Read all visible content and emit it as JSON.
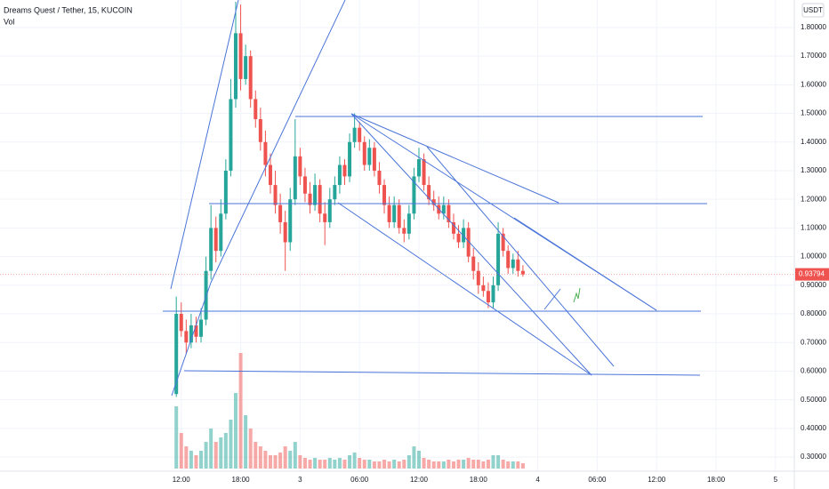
{
  "chart_data": {
    "type": "candlestick",
    "title": "Dreams Quest / Tether, 15, KUCOIN",
    "volume_label": "Vol",
    "currency": "USDT",
    "x": [
      11.5,
      12,
      12.5,
      13,
      13.5,
      14,
      14.5,
      15,
      15.5,
      16,
      16.5,
      17,
      17.5,
      18,
      18.5,
      19,
      19.5,
      20,
      20.5,
      21,
      21.5,
      22,
      22.5,
      23,
      23.5,
      24,
      24.5,
      25,
      25.5,
      26,
      26.5,
      27,
      27.5,
      28,
      28.5,
      29,
      29.5,
      30,
      30.5,
      31,
      31.5,
      32,
      32.5,
      33,
      33.5,
      34,
      34.5,
      35,
      35.5,
      36,
      36.5,
      37,
      37.5,
      38,
      38.5,
      39,
      39.5,
      40,
      40.5,
      41,
      41.5,
      42,
      42.5,
      43,
      43.5,
      44,
      44.5,
      45,
      45.5,
      46,
      46.5
    ],
    "open": [
      0.52,
      0.8,
      0.74,
      0.7,
      0.76,
      0.72,
      0.78,
      0.95,
      1.1,
      1.02,
      1.15,
      1.3,
      1.55,
      1.78,
      1.62,
      1.7,
      1.55,
      1.48,
      1.4,
      1.32,
      1.25,
      1.18,
      1.12,
      1.05,
      1.2,
      1.35,
      1.28,
      1.22,
      1.18,
      1.25,
      1.15,
      1.12,
      1.2,
      1.25,
      1.32,
      1.28,
      1.4,
      1.45,
      1.4,
      1.32,
      1.38,
      1.3,
      1.25,
      1.18,
      1.12,
      1.18,
      1.1,
      1.08,
      1.15,
      1.28,
      1.34,
      1.25,
      1.2,
      1.18,
      1.15,
      1.18,
      1.12,
      1.08,
      1.05,
      1.1,
      1.0,
      0.95,
      0.9,
      0.88,
      0.84,
      0.9,
      1.08,
      1.02,
      0.96,
      0.99,
      0.95
    ],
    "high": [
      0.86,
      0.84,
      0.78,
      0.8,
      0.79,
      0.82,
      1.0,
      1.18,
      1.14,
      1.2,
      1.34,
      1.62,
      1.89,
      1.88,
      1.74,
      1.72,
      1.58,
      1.52,
      1.44,
      1.36,
      1.3,
      1.22,
      1.16,
      1.24,
      1.48,
      1.38,
      1.31,
      1.26,
      1.29,
      1.27,
      1.19,
      1.24,
      1.28,
      1.35,
      1.34,
      1.43,
      1.5,
      1.47,
      1.42,
      1.41,
      1.4,
      1.33,
      1.27,
      1.21,
      1.21,
      1.2,
      1.13,
      1.18,
      1.31,
      1.38,
      1.36,
      1.28,
      1.23,
      1.21,
      1.21,
      1.2,
      1.15,
      1.11,
      1.13,
      1.12,
      1.03,
      0.98,
      0.93,
      0.91,
      0.93,
      1.12,
      1.1,
      1.04,
      1.01,
      1.02,
      0.97
    ],
    "low": [
      0.51,
      0.72,
      0.66,
      0.68,
      0.7,
      0.7,
      0.76,
      0.92,
      0.98,
      1.0,
      1.13,
      1.28,
      1.52,
      1.58,
      1.6,
      1.52,
      1.45,
      1.37,
      1.28,
      1.22,
      1.15,
      1.08,
      0.95,
      1.02,
      1.18,
      1.25,
      1.19,
      1.15,
      1.16,
      1.12,
      1.04,
      1.1,
      1.18,
      1.22,
      1.25,
      1.26,
      1.38,
      1.37,
      1.3,
      1.3,
      1.28,
      1.22,
      1.15,
      1.1,
      1.1,
      1.08,
      1.05,
      1.06,
      1.13,
      1.26,
      1.23,
      1.18,
      1.16,
      1.13,
      1.13,
      1.1,
      1.06,
      1.03,
      1.03,
      0.98,
      0.92,
      0.87,
      0.86,
      0.82,
      0.82,
      0.88,
      1.0,
      0.94,
      0.94,
      0.93,
      0.93
    ],
    "close": [
      0.8,
      0.74,
      0.7,
      0.76,
      0.72,
      0.78,
      0.95,
      1.1,
      1.02,
      1.15,
      1.3,
      1.55,
      1.78,
      1.62,
      1.7,
      1.55,
      1.48,
      1.4,
      1.32,
      1.25,
      1.18,
      1.12,
      1.05,
      1.2,
      1.35,
      1.28,
      1.22,
      1.18,
      1.25,
      1.15,
      1.12,
      1.2,
      1.25,
      1.32,
      1.28,
      1.4,
      1.45,
      1.4,
      1.32,
      1.38,
      1.3,
      1.25,
      1.18,
      1.12,
      1.18,
      1.1,
      1.08,
      1.15,
      1.28,
      1.34,
      1.25,
      1.2,
      1.18,
      1.15,
      1.18,
      1.12,
      1.08,
      1.05,
      1.1,
      1.0,
      0.95,
      0.9,
      0.88,
      0.84,
      0.9,
      1.08,
      1.02,
      0.96,
      0.99,
      0.95,
      0.93794
    ],
    "volume": [
      70,
      40,
      25,
      20,
      15,
      20,
      30,
      45,
      30,
      35,
      40,
      55,
      85,
      130,
      60,
      45,
      30,
      25,
      20,
      15,
      15,
      18,
      25,
      20,
      30,
      15,
      12,
      10,
      12,
      10,
      10,
      12,
      10,
      12,
      10,
      15,
      18,
      12,
      10,
      10,
      8,
      8,
      10,
      8,
      10,
      8,
      10,
      15,
      25,
      20,
      12,
      10,
      8,
      8,
      8,
      10,
      8,
      10,
      10,
      12,
      10,
      10,
      8,
      10,
      15,
      15,
      10,
      8,
      8,
      8,
      6
    ],
    "up_color": "#26a69a",
    "down_color": "#ef5350",
    "xlim": [
      -6.3,
      73.9
    ],
    "ylim": [
      0.235,
      1.896
    ],
    "xticks": [
      {
        "value": 12,
        "label": "12:00"
      },
      {
        "value": 18,
        "label": "18:00"
      },
      {
        "value": 24,
        "label": "3"
      },
      {
        "value": 30,
        "label": "06:00"
      },
      {
        "value": 36,
        "label": "12:00"
      },
      {
        "value": 42,
        "label": "18:00"
      },
      {
        "value": 48,
        "label": "4"
      },
      {
        "value": 54,
        "label": "06:00"
      },
      {
        "value": 60,
        "label": "12:00"
      },
      {
        "value": 66,
        "label": "18:00"
      },
      {
        "value": 72,
        "label": "5"
      }
    ],
    "yticks": [
      {
        "value": 0.3,
        "label": "0.30000"
      },
      {
        "value": 0.4,
        "label": "0.40000"
      },
      {
        "value": 0.5,
        "label": "0.50000"
      },
      {
        "value": 0.6,
        "label": "0.60000"
      },
      {
        "value": 0.7,
        "label": "0.70000"
      },
      {
        "value": 0.8,
        "label": "0.80000"
      },
      {
        "value": 0.9,
        "label": "0.90000"
      },
      {
        "value": 1.0,
        "label": "1.00000"
      },
      {
        "value": 1.1,
        "label": "1.10000"
      },
      {
        "value": 1.2,
        "label": "1.20000"
      },
      {
        "value": 1.3,
        "label": "1.30000"
      },
      {
        "value": 1.4,
        "label": "1.40000"
      },
      {
        "value": 1.5,
        "label": "1.50000"
      },
      {
        "value": 1.6,
        "label": "1.60000"
      },
      {
        "value": 1.7,
        "label": "1.70000"
      },
      {
        "value": 1.8,
        "label": "1.80000"
      }
    ],
    "grid": true
  }
}
